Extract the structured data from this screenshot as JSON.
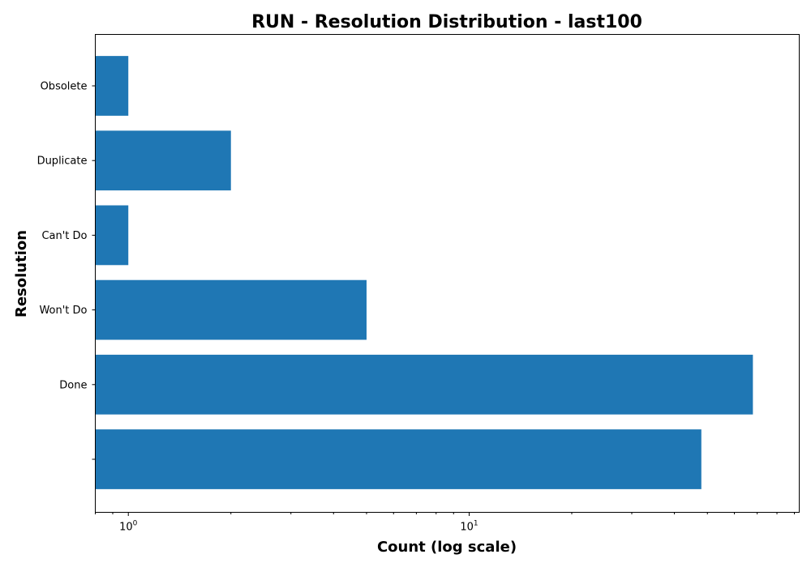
{
  "chart_data": {
    "type": "bar",
    "orientation": "horizontal",
    "title": "RUN - Resolution Distribution - last100",
    "xlabel": "Count (log scale)",
    "ylabel": "Resolution",
    "x_scale": "log",
    "xlim": [
      0.8,
      93
    ],
    "categories": [
      "",
      "Done",
      "Won't Do",
      "Can't Do",
      "Duplicate",
      "Obsolete"
    ],
    "values": [
      48,
      68,
      5,
      1,
      2,
      1
    ],
    "major_ticks": [
      {
        "value": 1,
        "base": "10",
        "exp": "0"
      },
      {
        "value": 10,
        "base": "10",
        "exp": "1"
      }
    ],
    "minor_ticks": [
      0.8,
      0.9,
      2,
      3,
      4,
      5,
      6,
      7,
      8,
      9,
      20,
      30,
      40,
      50,
      60,
      70,
      80,
      90
    ],
    "bar_color": "#1f77b4",
    "grid": false,
    "legend": null
  }
}
